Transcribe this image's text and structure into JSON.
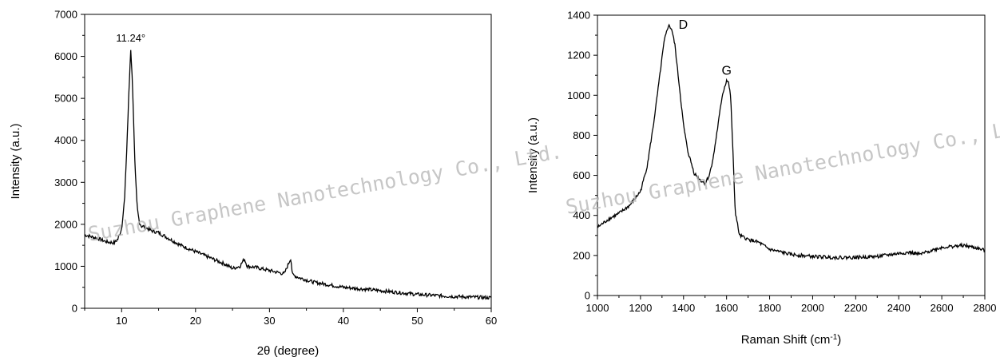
{
  "chart_data": [
    {
      "type": "line",
      "xlabel": "2θ (degree)",
      "ylabel": "Intensity (a.u.)",
      "xlim": [
        5,
        60
      ],
      "ylim": [
        0,
        7000
      ],
      "xticks": [
        10,
        20,
        30,
        40,
        50,
        60
      ],
      "yticks": [
        0,
        1000,
        2000,
        3000,
        4000,
        5000,
        6000,
        7000
      ],
      "annotations": [
        {
          "text": "11.24°",
          "x": 11.24,
          "y": 6200
        }
      ],
      "series": [
        {
          "x": [
            5,
            6,
            7,
            8,
            9,
            9.5,
            10,
            10.4,
            10.7,
            11.0,
            11.24,
            11.5,
            11.8,
            12.1,
            12.4,
            12.7,
            13,
            14,
            15,
            16,
            18,
            20,
            22,
            24,
            25,
            26,
            26.6,
            27,
            28,
            30,
            32,
            32.9,
            33.1,
            34,
            36,
            40,
            45,
            50,
            55,
            60
          ],
          "y": [
            1750,
            1700,
            1650,
            1580,
            1560,
            1650,
            1900,
            2600,
            3800,
            5200,
            6200,
            5200,
            3400,
            2400,
            2050,
            1950,
            1950,
            1850,
            1800,
            1700,
            1500,
            1350,
            1200,
            1050,
            950,
            1000,
            1180,
            1000,
            980,
            900,
            820,
            1200,
            800,
            730,
            620,
            500,
            420,
            330,
            280,
            250
          ]
        }
      ]
    },
    {
      "type": "line",
      "xlabel": "Raman Shift (cm",
      "xlabel_sup": "-1",
      "xlabel_end": ")",
      "ylabel": "Intensity (a.u.)",
      "xlim": [
        1000,
        2800
      ],
      "ylim": [
        0,
        1400
      ],
      "xticks": [
        1000,
        1200,
        1400,
        1600,
        1800,
        2000,
        2200,
        2400,
        2600,
        2800
      ],
      "yticks": [
        0,
        200,
        400,
        600,
        800,
        1000,
        1200,
        1400
      ],
      "annotations": [
        {
          "text": "D",
          "x": 1340,
          "y": 1360
        },
        {
          "text": "G",
          "x": 1600,
          "y": 1070
        }
      ],
      "series": [
        {
          "x": [
            1000,
            1050,
            1100,
            1150,
            1200,
            1230,
            1260,
            1290,
            1310,
            1330,
            1345,
            1360,
            1380,
            1400,
            1420,
            1450,
            1480,
            1500,
            1520,
            1540,
            1560,
            1580,
            1600,
            1610,
            1620,
            1630,
            1640,
            1660,
            1700,
            1750,
            1800,
            1900,
            2000,
            2100,
            2200,
            2300,
            2400,
            2450,
            2500,
            2550,
            2600,
            2650,
            2700,
            2750,
            2800
          ],
          "y": [
            340,
            380,
            410,
            450,
            520,
            640,
            850,
            1100,
            1270,
            1350,
            1330,
            1250,
            1050,
            850,
            720,
            610,
            575,
            560,
            600,
            700,
            850,
            1000,
            1075,
            1060,
            980,
            700,
            420,
            300,
            280,
            265,
            230,
            205,
            195,
            190,
            190,
            195,
            210,
            215,
            205,
            225,
            240,
            245,
            250,
            240,
            225
          ]
        }
      ]
    }
  ],
  "watermark": "Suzhou Graphene Nanotechnology Co., Ltd."
}
